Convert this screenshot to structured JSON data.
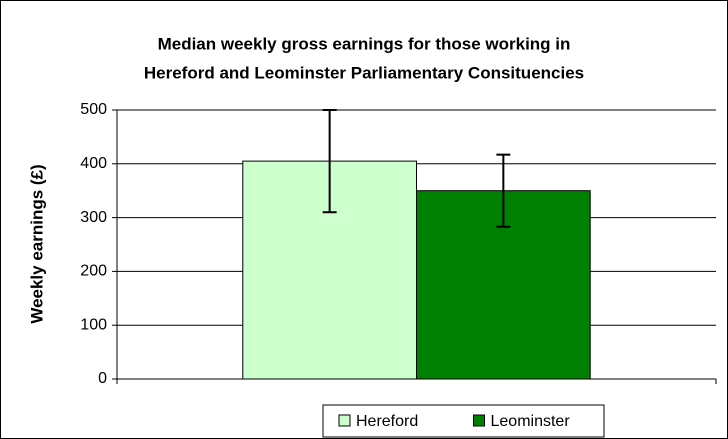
{
  "chart_data": {
    "type": "bar",
    "title": [
      "Median weekly gross earnings for those working in",
      "Hereford and Leominster Parliamentary Consituencies"
    ],
    "y_label": "Weekly earnings (£)",
    "categories": [
      null
    ],
    "series": [
      {
        "name": "Hereford",
        "color": "#ccffcc",
        "values": [
          405
        ],
        "errors": [
          95
        ]
      },
      {
        "name": "Leominster",
        "color": "#008000",
        "values": [
          350
        ],
        "errors": [
          67
        ]
      }
    ],
    "ylim": [
      0,
      500
    ],
    "yticks": [
      0,
      100,
      200,
      300,
      400,
      500
    ],
    "grid": true,
    "legend": "bottom"
  }
}
